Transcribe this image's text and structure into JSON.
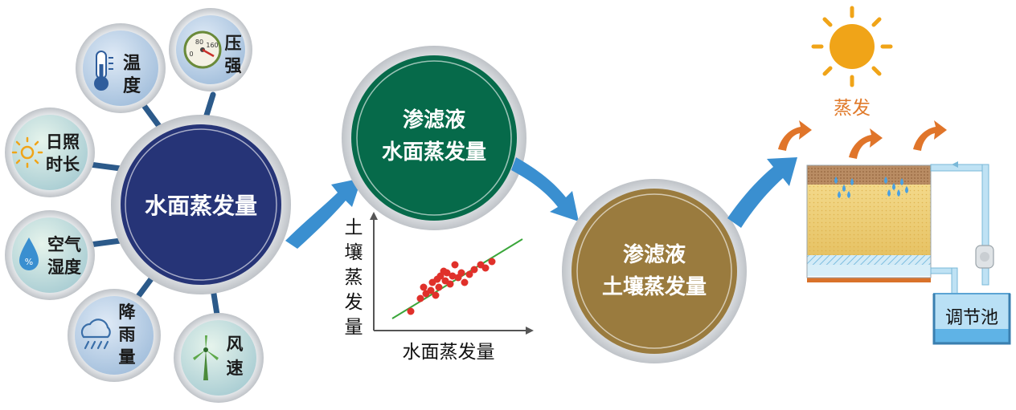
{
  "hub": {
    "label": "水面蒸发量",
    "factors": {
      "temperature": [
        "温",
        "度"
      ],
      "pressure": [
        "压",
        "强"
      ],
      "sunshine": [
        "日照",
        "时长"
      ],
      "humidity": [
        "空气",
        "湿度"
      ],
      "rain": [
        "降",
        "雨",
        "量"
      ],
      "wind": [
        "风",
        "速"
      ]
    },
    "gauge_ticks": [
      "80",
      "0",
      "160"
    ]
  },
  "green_circle": [
    "渗滤液",
    "水面蒸发量"
  ],
  "brown_circle": [
    "渗滤液",
    "土壤蒸发量"
  ],
  "scatter": {
    "ylabel_chars": [
      "土",
      "壤",
      "蒸",
      "发",
      "量"
    ],
    "xlabel": "水面蒸发量"
  },
  "apparatus": {
    "evaporation_label": "蒸发",
    "tank_label": "调节池"
  },
  "colors": {
    "navy": "#263477",
    "green": "#066a4a",
    "brown": "#9a7b3e",
    "arrow_blue": "#3a8fd0",
    "sun": "#f0a418"
  }
}
